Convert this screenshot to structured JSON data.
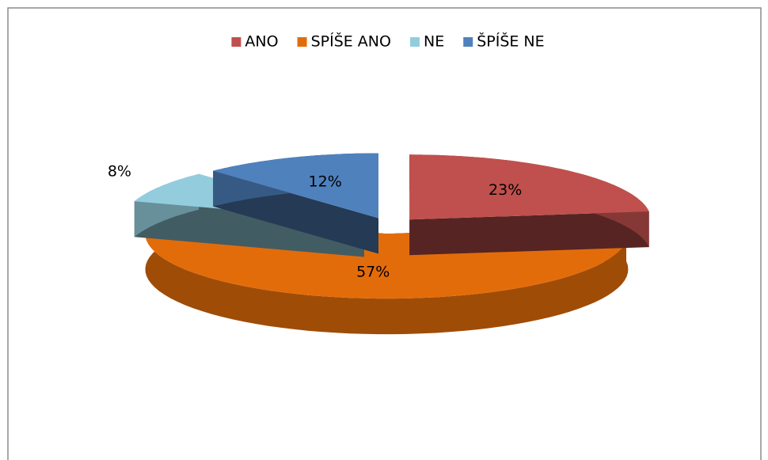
{
  "chart_data": {
    "type": "pie3d",
    "categories": [
      "ANO",
      "SPÍŠE ANO",
      "NE",
      "ŠPÍŠE NE"
    ],
    "values": [
      23,
      57,
      8,
      12
    ],
    "value_labels": [
      "23%",
      "57%",
      "8%",
      "12%"
    ],
    "colors": [
      "#c0504d",
      "#e36c0a",
      "#93cddd",
      "#4f81bd"
    ],
    "legend": "top"
  }
}
